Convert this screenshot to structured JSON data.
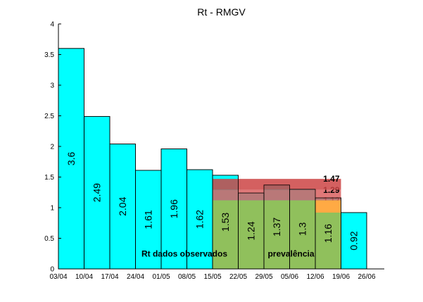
{
  "chart_data": {
    "type": "bar",
    "title": "Rt - RMGV",
    "xlabel": "",
    "ylabel": "",
    "ylim": [
      0,
      4
    ],
    "yticks": [
      "0",
      "0.5",
      "1",
      "1.5",
      "2",
      "2.5",
      "3",
      "3.5",
      "4"
    ],
    "x_ticks": [
      "03/04",
      "10/04",
      "17/04",
      "24/04",
      "01/05",
      "08/05",
      "15/05",
      "22/05",
      "29/05",
      "05/06",
      "12/06",
      "19/06",
      "26/06"
    ],
    "series": [
      {
        "name": "Rt dados observados",
        "color": "#00ffff",
        "values": [
          3.6,
          2.49,
          2.04,
          1.61,
          1.96,
          1.62,
          1.53,
          1.24,
          1.37,
          1.3,
          1.16,
          0.92
        ],
        "labels": [
          "3.6",
          "2.49",
          "2.04",
          "1.61",
          "1.96",
          "1.62",
          "1.53",
          "1.24",
          "1.37",
          "1.3",
          "1.16",
          "0.92"
        ]
      }
    ],
    "bands": [
      {
        "name": "1.47",
        "lower": 1.29,
        "upper": 1.47,
        "color": "#cc4444",
        "start": "15/05",
        "end": "19/06"
      },
      {
        "name": "1.29",
        "lower": 1.12,
        "upper": 1.29,
        "color": "#d96060",
        "start": "15/05",
        "end": "19/06"
      },
      {
        "name": "1.12",
        "lower": 0,
        "upper": 1.12,
        "color": "#a9b540",
        "start": "15/05",
        "end": "19/06"
      }
    ],
    "annotations": [
      "Rt dados observados",
      "prevalência"
    ]
  }
}
